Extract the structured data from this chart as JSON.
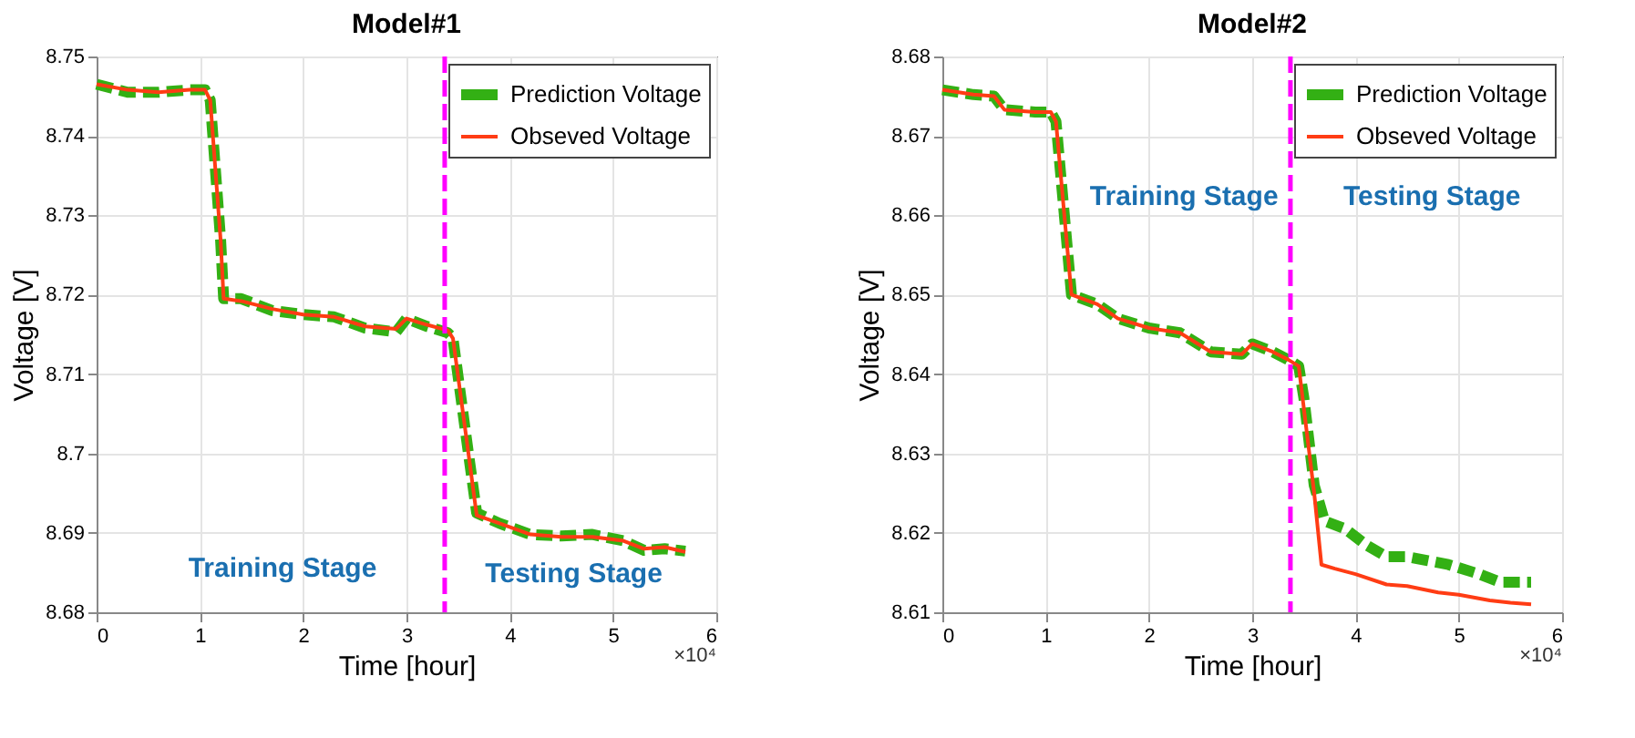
{
  "chart_data": [
    {
      "type": "line",
      "title": "Model#1",
      "xlabel": "Time [hour]",
      "ylabel": "Voltage [V]",
      "xlim": [
        0,
        6
      ],
      "xticks": [
        0,
        1,
        2,
        3,
        4,
        5,
        6
      ],
      "ylim": [
        8.68,
        8.75
      ],
      "yticks": [
        8.68,
        8.69,
        8.7,
        8.71,
        8.72,
        8.73,
        8.74,
        8.75
      ],
      "grid": true,
      "legend": "top right",
      "series": [
        {
          "name": "Prediction Voltage",
          "color": "#33b014",
          "line_style": "dashed",
          "x": [
            0,
            0.3,
            0.6,
            0.9,
            1.05,
            1.1,
            1.2,
            1.23,
            1.4,
            1.7,
            2.0,
            2.3,
            2.6,
            2.9,
            3.0,
            3.2,
            3.4,
            3.45,
            3.6,
            3.68,
            3.9,
            4.2,
            4.5,
            4.8,
            5.1,
            5.3,
            5.5,
            5.7
          ],
          "values": [
            8.7465,
            8.7455,
            8.7455,
            8.7458,
            8.7458,
            8.7445,
            8.727,
            8.7195,
            8.7195,
            8.718,
            8.7175,
            8.7172,
            8.7158,
            8.7153,
            8.717,
            8.716,
            8.7152,
            8.7145,
            8.7,
            8.6925,
            8.6912,
            8.6898,
            8.6896,
            8.6898,
            8.689,
            8.6878,
            8.688,
            8.6877
          ]
        },
        {
          "name": "Obseved Voltage",
          "color": "#ff3c14",
          "line_style": "solid",
          "x": [
            0,
            0.3,
            0.6,
            0.9,
            1.05,
            1.1,
            1.2,
            1.23,
            1.4,
            1.7,
            2.0,
            2.3,
            2.6,
            2.9,
            3.0,
            3.2,
            3.4,
            3.45,
            3.6,
            3.68,
            3.9,
            4.2,
            4.5,
            4.8,
            5.1,
            5.3,
            5.5,
            5.7
          ],
          "values": [
            8.7465,
            8.7458,
            8.7455,
            8.7458,
            8.7458,
            8.7445,
            8.727,
            8.7195,
            8.7192,
            8.7182,
            8.7175,
            8.7172,
            8.716,
            8.7157,
            8.717,
            8.7162,
            8.7155,
            8.7145,
            8.7,
            8.6922,
            8.6912,
            8.6898,
            8.6895,
            8.6895,
            8.689,
            8.688,
            8.6882,
            8.6876
          ]
        }
      ],
      "ref_lines": [
        {
          "axis": "x",
          "value": 3.37,
          "color": "#ff00ff",
          "line_style": "dashed"
        }
      ],
      "annotations": [
        "Training Stage",
        "Testing Stage",
        "×10⁴"
      ]
    },
    {
      "type": "line",
      "title": "Model#2",
      "xlabel": "Time [hour]",
      "ylabel": "Voltage [V]",
      "xlim": [
        0,
        6
      ],
      "xticks": [
        0,
        1,
        2,
        3,
        4,
        5,
        6
      ],
      "ylim": [
        8.61,
        8.68
      ],
      "yticks": [
        8.61,
        8.62,
        8.63,
        8.64,
        8.65,
        8.66,
        8.67,
        8.68
      ],
      "grid": true,
      "legend": "top right",
      "series": [
        {
          "name": "Prediction Voltage",
          "color": "#33b014",
          "line_style": "dashed",
          "x": [
            0,
            0.3,
            0.5,
            0.6,
            0.9,
            1.05,
            1.1,
            1.25,
            1.5,
            1.7,
            2.0,
            2.3,
            2.6,
            2.9,
            3.0,
            3.2,
            3.35,
            3.45,
            3.5,
            3.6,
            3.7,
            3.9,
            4.1,
            4.3,
            4.5,
            4.7,
            4.9,
            5.2,
            5.4,
            5.7
          ],
          "values": [
            8.6758,
            8.6752,
            8.675,
            8.6733,
            8.673,
            8.673,
            8.6718,
            8.65,
            8.6488,
            8.647,
            8.6458,
            8.6452,
            8.6428,
            8.6425,
            8.6438,
            8.6428,
            8.6418,
            8.641,
            8.637,
            8.626,
            8.6215,
            8.6205,
            8.6185,
            8.617,
            8.617,
            8.6165,
            8.616,
            8.6148,
            8.6138,
            8.6138
          ]
        },
        {
          "name": "Obseved Voltage",
          "color": "#ff3c14",
          "line_style": "solid",
          "x": [
            0,
            0.3,
            0.5,
            0.6,
            0.9,
            1.05,
            1.1,
            1.25,
            1.5,
            1.7,
            2.0,
            2.3,
            2.6,
            2.9,
            3.0,
            3.2,
            3.35,
            3.45,
            3.6,
            3.67,
            3.8,
            4.0,
            4.3,
            4.5,
            4.8,
            5.0,
            5.3,
            5.5,
            5.7
          ],
          "values": [
            8.6758,
            8.6752,
            8.675,
            8.6733,
            8.673,
            8.673,
            8.6718,
            8.65,
            8.6488,
            8.647,
            8.6458,
            8.6452,
            8.6428,
            8.6425,
            8.6438,
            8.6428,
            8.6418,
            8.641,
            8.625,
            8.616,
            8.6155,
            8.6148,
            8.6135,
            8.6133,
            8.6125,
            8.6122,
            8.6115,
            8.6112,
            8.611
          ]
        }
      ],
      "ref_lines": [
        {
          "axis": "x",
          "value": 3.37,
          "color": "#ff00ff",
          "line_style": "dashed"
        }
      ],
      "annotations": [
        "Training Stage",
        "Testing Stage",
        "×10⁴"
      ]
    }
  ]
}
